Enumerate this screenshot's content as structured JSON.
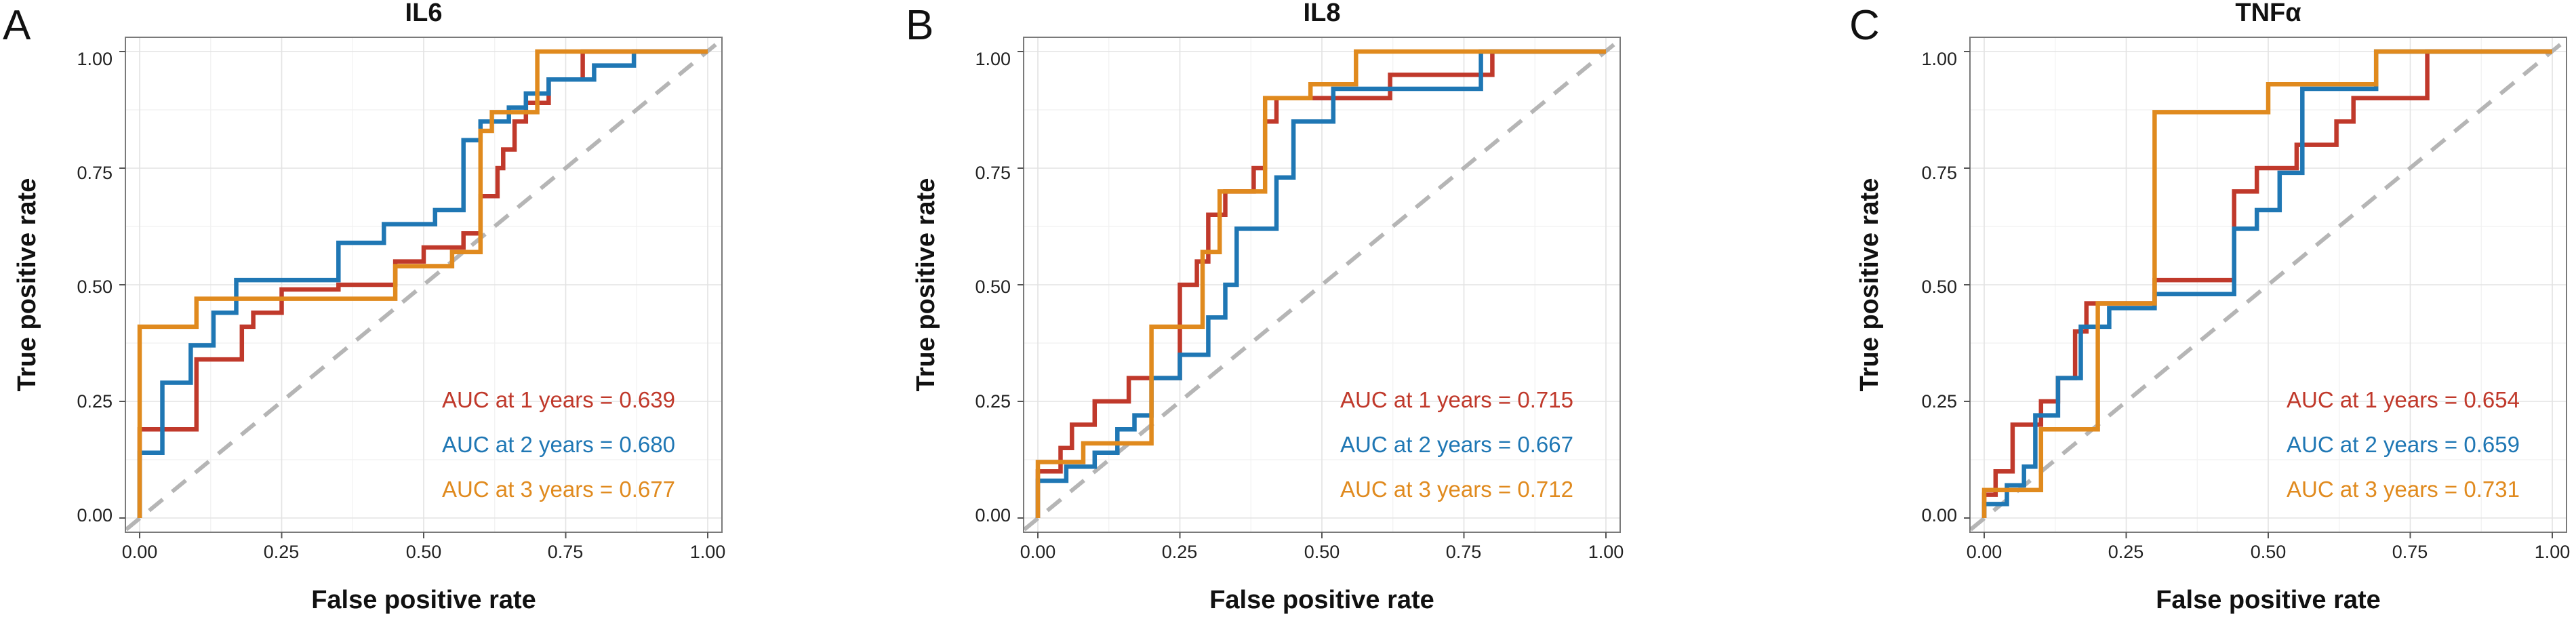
{
  "colors": {
    "year1": "#c0392b",
    "year2": "#1f77b4",
    "year3": "#e08a1e",
    "diagonal": "#b5b5b5"
  },
  "chart_data": [
    {
      "type": "line",
      "panel": "A",
      "title": "IL6",
      "xlabel": "False positive rate",
      "ylabel": "True positive rate",
      "xlim": [
        0,
        1
      ],
      "ylim": [
        0,
        1
      ],
      "x_ticks": [
        "0.00",
        "0.25",
        "0.50",
        "0.75",
        "1.00"
      ],
      "y_ticks": [
        "0.00",
        "0.25",
        "0.50",
        "0.75",
        "1.00"
      ],
      "grid": true,
      "legend_position": "bottom-right",
      "reference_line": "diagonal dashed",
      "series": [
        {
          "name": "1 years",
          "color_key": "year1",
          "auc_label": "AUC at 1 years = 0.639",
          "points": [
            [
              0,
              0
            ],
            [
              0,
              0.19
            ],
            [
              0.1,
              0.19
            ],
            [
              0.1,
              0.34
            ],
            [
              0.18,
              0.34
            ],
            [
              0.18,
              0.41
            ],
            [
              0.2,
              0.41
            ],
            [
              0.2,
              0.44
            ],
            [
              0.25,
              0.44
            ],
            [
              0.25,
              0.49
            ],
            [
              0.35,
              0.49
            ],
            [
              0.35,
              0.5
            ],
            [
              0.45,
              0.5
            ],
            [
              0.45,
              0.55
            ],
            [
              0.5,
              0.55
            ],
            [
              0.5,
              0.58
            ],
            [
              0.57,
              0.58
            ],
            [
              0.57,
              0.61
            ],
            [
              0.6,
              0.61
            ],
            [
              0.6,
              0.69
            ],
            [
              0.63,
              0.69
            ],
            [
              0.63,
              0.75
            ],
            [
              0.64,
              0.75
            ],
            [
              0.64,
              0.79
            ],
            [
              0.66,
              0.79
            ],
            [
              0.66,
              0.85
            ],
            [
              0.68,
              0.85
            ],
            [
              0.68,
              0.89
            ],
            [
              0.72,
              0.89
            ],
            [
              0.72,
              0.94
            ],
            [
              0.78,
              0.94
            ],
            [
              0.78,
              1.0
            ],
            [
              1.0,
              1.0
            ]
          ]
        },
        {
          "name": "2 years",
          "color_key": "year2",
          "auc_label": "AUC at 2 years = 0.680",
          "points": [
            [
              0,
              0
            ],
            [
              0,
              0.14
            ],
            [
              0.04,
              0.14
            ],
            [
              0.04,
              0.29
            ],
            [
              0.09,
              0.29
            ],
            [
              0.09,
              0.37
            ],
            [
              0.13,
              0.37
            ],
            [
              0.13,
              0.44
            ],
            [
              0.17,
              0.44
            ],
            [
              0.17,
              0.51
            ],
            [
              0.35,
              0.51
            ],
            [
              0.35,
              0.59
            ],
            [
              0.43,
              0.59
            ],
            [
              0.43,
              0.63
            ],
            [
              0.52,
              0.63
            ],
            [
              0.52,
              0.66
            ],
            [
              0.57,
              0.66
            ],
            [
              0.57,
              0.81
            ],
            [
              0.6,
              0.81
            ],
            [
              0.6,
              0.85
            ],
            [
              0.65,
              0.85
            ],
            [
              0.65,
              0.88
            ],
            [
              0.68,
              0.88
            ],
            [
              0.68,
              0.91
            ],
            [
              0.72,
              0.91
            ],
            [
              0.72,
              0.94
            ],
            [
              0.8,
              0.94
            ],
            [
              0.8,
              0.97
            ],
            [
              0.87,
              0.97
            ],
            [
              0.87,
              1.0
            ],
            [
              1.0,
              1.0
            ]
          ]
        },
        {
          "name": "3 years",
          "color_key": "year3",
          "auc_label": "AUC at 3 years = 0.677",
          "points": [
            [
              0,
              0
            ],
            [
              0,
              0.41
            ],
            [
              0.1,
              0.41
            ],
            [
              0.1,
              0.47
            ],
            [
              0.45,
              0.47
            ],
            [
              0.45,
              0.54
            ],
            [
              0.55,
              0.54
            ],
            [
              0.55,
              0.57
            ],
            [
              0.6,
              0.57
            ],
            [
              0.6,
              0.83
            ],
            [
              0.62,
              0.83
            ],
            [
              0.62,
              0.87
            ],
            [
              0.7,
              0.87
            ],
            [
              0.7,
              1.0
            ],
            [
              1.0,
              1.0
            ]
          ]
        }
      ]
    },
    {
      "type": "line",
      "panel": "B",
      "title": "IL8",
      "xlabel": "False positive rate",
      "ylabel": "True positive rate",
      "xlim": [
        0,
        1
      ],
      "ylim": [
        0,
        1
      ],
      "x_ticks": [
        "0.00",
        "0.25",
        "0.50",
        "0.75",
        "1.00"
      ],
      "y_ticks": [
        "0.00",
        "0.25",
        "0.50",
        "0.75",
        "1.00"
      ],
      "grid": true,
      "legend_position": "bottom-right",
      "reference_line": "diagonal dashed",
      "series": [
        {
          "name": "1 years",
          "color_key": "year1",
          "auc_label": "AUC at 1 years = 0.715",
          "points": [
            [
              0,
              0
            ],
            [
              0,
              0.1
            ],
            [
              0.04,
              0.1
            ],
            [
              0.04,
              0.15
            ],
            [
              0.06,
              0.15
            ],
            [
              0.06,
              0.2
            ],
            [
              0.1,
              0.2
            ],
            [
              0.1,
              0.25
            ],
            [
              0.16,
              0.25
            ],
            [
              0.16,
              0.3
            ],
            [
              0.25,
              0.3
            ],
            [
              0.25,
              0.5
            ],
            [
              0.28,
              0.5
            ],
            [
              0.28,
              0.55
            ],
            [
              0.3,
              0.55
            ],
            [
              0.3,
              0.65
            ],
            [
              0.33,
              0.65
            ],
            [
              0.33,
              0.7
            ],
            [
              0.38,
              0.7
            ],
            [
              0.38,
              0.75
            ],
            [
              0.4,
              0.75
            ],
            [
              0.4,
              0.85
            ],
            [
              0.42,
              0.85
            ],
            [
              0.42,
              0.9
            ],
            [
              0.62,
              0.9
            ],
            [
              0.62,
              0.95
            ],
            [
              0.8,
              0.95
            ],
            [
              0.8,
              1.0
            ],
            [
              1.0,
              1.0
            ]
          ]
        },
        {
          "name": "2 years",
          "color_key": "year2",
          "auc_label": "AUC at 2 years = 0.667",
          "points": [
            [
              0,
              0
            ],
            [
              0,
              0.08
            ],
            [
              0.05,
              0.08
            ],
            [
              0.05,
              0.11
            ],
            [
              0.1,
              0.11
            ],
            [
              0.1,
              0.14
            ],
            [
              0.14,
              0.14
            ],
            [
              0.14,
              0.19
            ],
            [
              0.17,
              0.19
            ],
            [
              0.17,
              0.22
            ],
            [
              0.2,
              0.22
            ],
            [
              0.2,
              0.3
            ],
            [
              0.25,
              0.3
            ],
            [
              0.25,
              0.35
            ],
            [
              0.3,
              0.35
            ],
            [
              0.3,
              0.43
            ],
            [
              0.33,
              0.43
            ],
            [
              0.33,
              0.5
            ],
            [
              0.35,
              0.5
            ],
            [
              0.35,
              0.62
            ],
            [
              0.42,
              0.62
            ],
            [
              0.42,
              0.73
            ],
            [
              0.45,
              0.73
            ],
            [
              0.45,
              0.85
            ],
            [
              0.52,
              0.85
            ],
            [
              0.52,
              0.92
            ],
            [
              0.78,
              0.92
            ],
            [
              0.78,
              1.0
            ],
            [
              1.0,
              1.0
            ]
          ]
        },
        {
          "name": "3 years",
          "color_key": "year3",
          "auc_label": "AUC at 3 years = 0.712",
          "points": [
            [
              0,
              0
            ],
            [
              0,
              0.12
            ],
            [
              0.08,
              0.12
            ],
            [
              0.08,
              0.16
            ],
            [
              0.2,
              0.16
            ],
            [
              0.2,
              0.41
            ],
            [
              0.29,
              0.41
            ],
            [
              0.29,
              0.57
            ],
            [
              0.32,
              0.57
            ],
            [
              0.32,
              0.7
            ],
            [
              0.4,
              0.7
            ],
            [
              0.4,
              0.9
            ],
            [
              0.48,
              0.9
            ],
            [
              0.48,
              0.93
            ],
            [
              0.56,
              0.93
            ],
            [
              0.56,
              1.0
            ],
            [
              1.0,
              1.0
            ]
          ]
        }
      ]
    },
    {
      "type": "line",
      "panel": "C",
      "title": "TNFα",
      "xlabel": "False positive rate",
      "ylabel": "True positive rate",
      "xlim": [
        0,
        1
      ],
      "ylim": [
        0,
        1
      ],
      "x_ticks": [
        "0.00",
        "0.25",
        "0.50",
        "0.75",
        "1.00"
      ],
      "y_ticks": [
        "0.00",
        "0.25",
        "0.50",
        "0.75",
        "1.00"
      ],
      "grid": true,
      "legend_position": "bottom-right",
      "reference_line": "diagonal dashed",
      "series": [
        {
          "name": "1 years",
          "color_key": "year1",
          "auc_label": "AUC at 1 years = 0.654",
          "points": [
            [
              0,
              0
            ],
            [
              0,
              0.05
            ],
            [
              0.02,
              0.05
            ],
            [
              0.02,
              0.1
            ],
            [
              0.05,
              0.1
            ],
            [
              0.05,
              0.2
            ],
            [
              0.1,
              0.2
            ],
            [
              0.1,
              0.25
            ],
            [
              0.13,
              0.25
            ],
            [
              0.13,
              0.3
            ],
            [
              0.16,
              0.3
            ],
            [
              0.16,
              0.4
            ],
            [
              0.18,
              0.4
            ],
            [
              0.18,
              0.46
            ],
            [
              0.3,
              0.46
            ],
            [
              0.3,
              0.51
            ],
            [
              0.44,
              0.51
            ],
            [
              0.44,
              0.7
            ],
            [
              0.48,
              0.7
            ],
            [
              0.48,
              0.75
            ],
            [
              0.55,
              0.75
            ],
            [
              0.55,
              0.8
            ],
            [
              0.62,
              0.8
            ],
            [
              0.62,
              0.85
            ],
            [
              0.65,
              0.85
            ],
            [
              0.65,
              0.9
            ],
            [
              0.78,
              0.9
            ],
            [
              0.78,
              1.0
            ],
            [
              1.0,
              1.0
            ]
          ]
        },
        {
          "name": "2 years",
          "color_key": "year2",
          "auc_label": "AUC at 2 years = 0.659",
          "points": [
            [
              0,
              0
            ],
            [
              0,
              0.03
            ],
            [
              0.04,
              0.03
            ],
            [
              0.04,
              0.07
            ],
            [
              0.07,
              0.07
            ],
            [
              0.07,
              0.11
            ],
            [
              0.09,
              0.11
            ],
            [
              0.09,
              0.22
            ],
            [
              0.13,
              0.22
            ],
            [
              0.13,
              0.3
            ],
            [
              0.17,
              0.3
            ],
            [
              0.17,
              0.41
            ],
            [
              0.22,
              0.41
            ],
            [
              0.22,
              0.45
            ],
            [
              0.3,
              0.45
            ],
            [
              0.3,
              0.48
            ],
            [
              0.44,
              0.48
            ],
            [
              0.44,
              0.62
            ],
            [
              0.48,
              0.62
            ],
            [
              0.48,
              0.66
            ],
            [
              0.52,
              0.66
            ],
            [
              0.52,
              0.74
            ],
            [
              0.56,
              0.74
            ],
            [
              0.56,
              0.92
            ],
            [
              0.69,
              0.92
            ],
            [
              0.69,
              1.0
            ],
            [
              1.0,
              1.0
            ]
          ]
        },
        {
          "name": "3 years",
          "color_key": "year3",
          "auc_label": "AUC at 3 years = 0.731",
          "points": [
            [
              0,
              0
            ],
            [
              0,
              0.06
            ],
            [
              0.1,
              0.06
            ],
            [
              0.1,
              0.19
            ],
            [
              0.2,
              0.19
            ],
            [
              0.2,
              0.46
            ],
            [
              0.3,
              0.46
            ],
            [
              0.3,
              0.87
            ],
            [
              0.5,
              0.87
            ],
            [
              0.5,
              0.93
            ],
            [
              0.69,
              0.93
            ],
            [
              0.69,
              1.0
            ],
            [
              1.0,
              1.0
            ]
          ]
        }
      ]
    }
  ]
}
